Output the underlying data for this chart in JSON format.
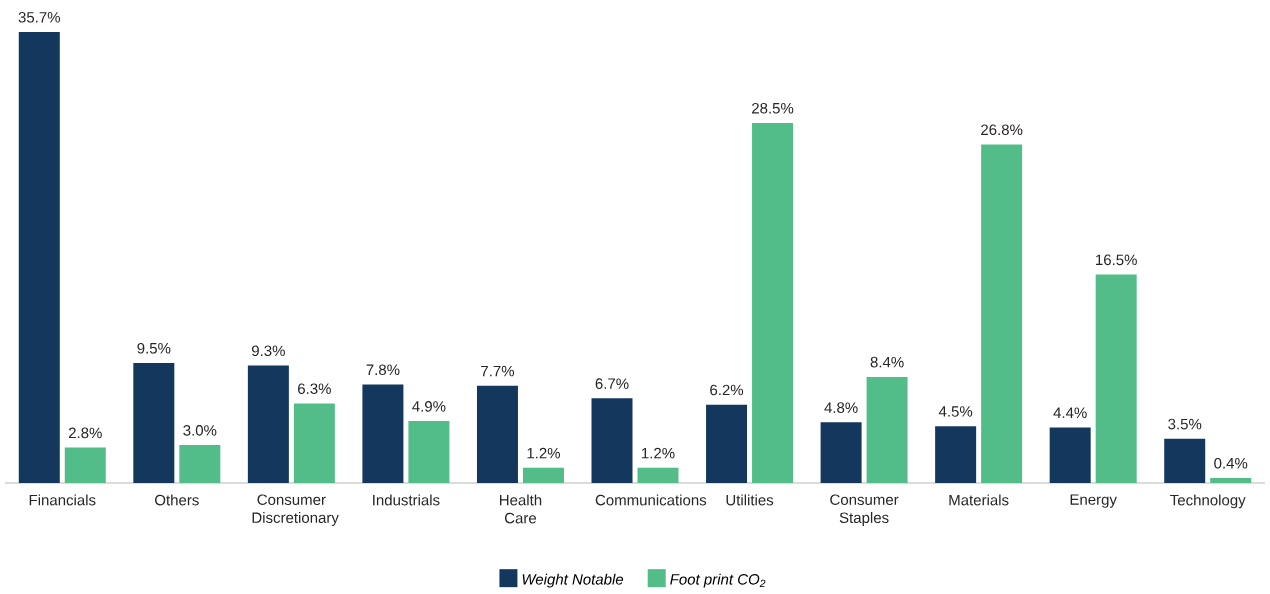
{
  "chart_data": {
    "type": "bar",
    "categories": [
      "Financials",
      "Others",
      "Consumer Discretionary",
      "Industrials",
      "Health Care",
      "Communications",
      "Utilities",
      "Consumer Staples",
      "Materials",
      "Energy",
      "Technology"
    ],
    "series": [
      {
        "name": "*Weight Notable*",
        "color": "#14375e",
        "values": [
          35.7,
          9.5,
          9.3,
          7.8,
          7.7,
          6.7,
          6.2,
          4.8,
          4.5,
          4.4,
          3.5
        ],
        "value_labels": [
          "35.7%",
          "9.5%",
          "9.3%",
          "7.8%",
          "7.7%",
          "6.7%",
          "6.2%",
          "4.8%",
          "4.5%",
          "4.4%",
          "3.5%"
        ]
      },
      {
        "name": "*Foot print CO$_{2}$*",
        "color": "#52bd88",
        "values": [
          2.8,
          3.0,
          6.3,
          4.9,
          1.2,
          1.2,
          28.5,
          8.4,
          26.8,
          16.5,
          0.4
        ],
        "value_labels": [
          "2.8%",
          "3.0%",
          "6.3%",
          "4.9%",
          "1.2%",
          "1.2%",
          "28.5%",
          "8.4%",
          "26.8%",
          "16.5%",
          "0.4%"
        ]
      }
    ],
    "legend": "bottom"
  }
}
